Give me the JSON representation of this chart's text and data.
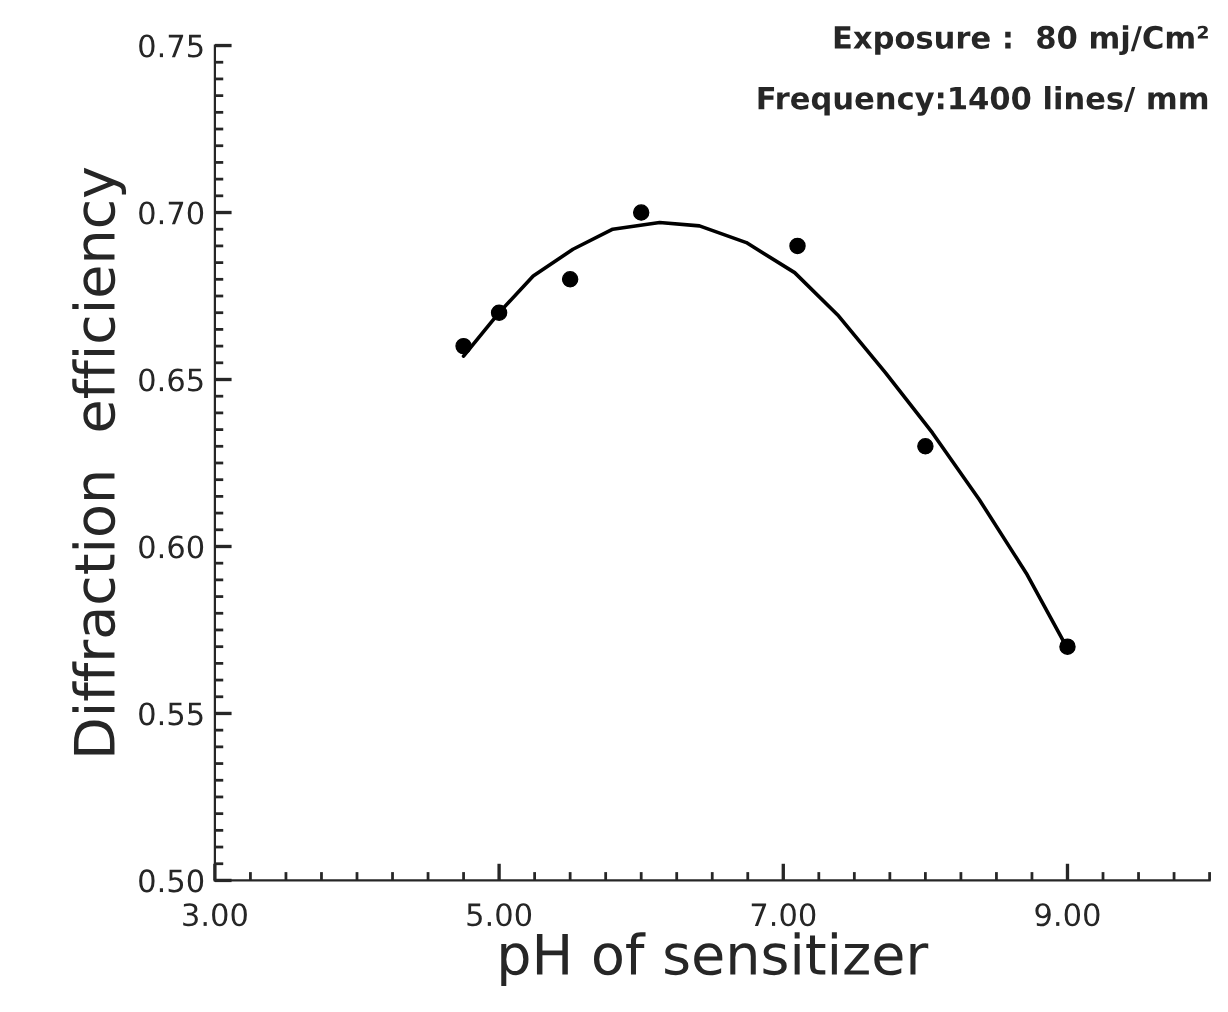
{
  "chart_data": {
    "type": "scatter",
    "xlabel": "pH of sensitizer",
    "ylabel": "Diffraction  efficiency",
    "annotations": [
      "Exposure :  80 mj/Cm²",
      "Frequency:1400 lines/ mm"
    ],
    "xlim": [
      3,
      10
    ],
    "ylim": [
      0.5,
      0.75
    ],
    "xticks": [
      {
        "value": 3,
        "label": "3.00"
      },
      {
        "value": 5,
        "label": "5.00"
      },
      {
        "value": 7,
        "label": "7.00"
      },
      {
        "value": 9,
        "label": "9.00"
      }
    ],
    "yticks": [
      {
        "value": 0.5,
        "label": "0.50"
      },
      {
        "value": 0.55,
        "label": "0.55"
      },
      {
        "value": 0.6,
        "label": "0.60"
      },
      {
        "value": 0.65,
        "label": "0.65"
      },
      {
        "value": 0.7,
        "label": "0.70"
      },
      {
        "value": 0.75,
        "label": "0.75"
      }
    ],
    "grid": false,
    "legend": false,
    "series": [
      {
        "color": "#000000",
        "marker": "circle",
        "x": [
          4.75,
          5.0,
          5.5,
          6.0,
          7.1,
          8.0,
          9.0
        ],
        "values": [
          0.66,
          0.67,
          0.68,
          0.7,
          0.69,
          0.63,
          0.57
        ]
      },
      {
        "type": "line",
        "color": "#000000",
        "marker": "none",
        "line_style": "solid",
        "x": [
          4.75,
          5.0,
          5.24,
          5.52,
          5.8,
          6.13,
          6.41,
          6.74,
          7.08,
          7.39,
          7.72,
          8.05,
          8.38,
          8.71,
          8.98
        ],
        "values": [
          0.657,
          0.67,
          0.681,
          0.689,
          0.695,
          0.697,
          0.696,
          0.691,
          0.682,
          0.669,
          0.652,
          0.634,
          0.614,
          0.592,
          0.571
        ]
      }
    ]
  }
}
